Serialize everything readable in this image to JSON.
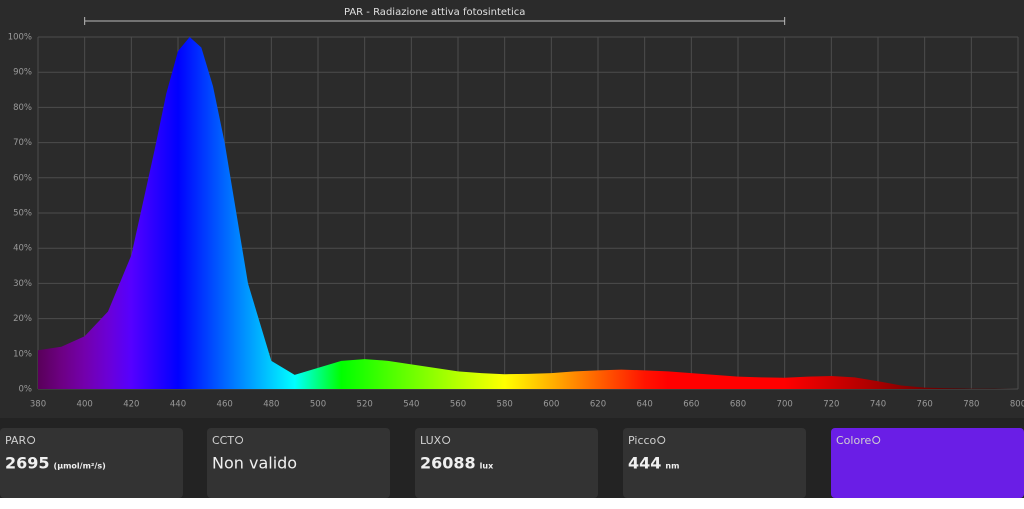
{
  "chart_data": {
    "type": "area",
    "annotation": "PAR - Radiazione attiva fotosintetica",
    "par_range": [
      400,
      700
    ],
    "x": [
      380,
      390,
      400,
      410,
      420,
      430,
      435,
      440,
      445,
      450,
      455,
      460,
      470,
      480,
      490,
      500,
      510,
      520,
      530,
      540,
      550,
      560,
      570,
      580,
      590,
      600,
      610,
      620,
      630,
      640,
      650,
      660,
      670,
      680,
      690,
      700,
      710,
      720,
      730,
      740,
      750,
      760,
      770,
      780,
      790,
      800
    ],
    "values": [
      11,
      12,
      15,
      22,
      38,
      68,
      84,
      96,
      100,
      97,
      86,
      70,
      30,
      8,
      4,
      6,
      8,
      8.5,
      8,
      7,
      6,
      5,
      4.5,
      4.2,
      4.3,
      4.5,
      5,
      5.3,
      5.5,
      5.3,
      5,
      4.5,
      4,
      3.5,
      3.3,
      3.2,
      3.5,
      3.7,
      3.3,
      2.2,
      1,
      0.4,
      0.2,
      0.1,
      0.1,
      0
    ],
    "xlim": [
      380,
      800
    ],
    "xticks": [
      380,
      400,
      420,
      440,
      460,
      480,
      500,
      520,
      540,
      560,
      580,
      600,
      620,
      640,
      660,
      680,
      700,
      720,
      740,
      760,
      780,
      800
    ],
    "ylim": [
      0,
      100
    ],
    "yticks": [
      {
        "value": 0,
        "label": "0%"
      },
      {
        "value": 10,
        "label": "10%"
      },
      {
        "value": 20,
        "label": "20%"
      },
      {
        "value": 30,
        "label": "30%"
      },
      {
        "value": 40,
        "label": "40%"
      },
      {
        "value": 50,
        "label": "50%"
      },
      {
        "value": 60,
        "label": "60%"
      },
      {
        "value": 70,
        "label": "70%"
      },
      {
        "value": 80,
        "label": "80%"
      },
      {
        "value": 90,
        "label": "90%"
      },
      {
        "value": 100,
        "label": "100%"
      }
    ],
    "grid": true
  },
  "panels": [
    {
      "label": "PAR",
      "value": "2695",
      "unit": "(µmol/m²/s)"
    },
    {
      "label": "CCT",
      "value": "Non valido"
    },
    {
      "label": "LUX",
      "value": "26088",
      "unit": "lux"
    },
    {
      "label": "Picco",
      "value": "444",
      "unit": "nm"
    },
    {
      "label": "Colore",
      "color": "#6a1ee6"
    }
  ]
}
